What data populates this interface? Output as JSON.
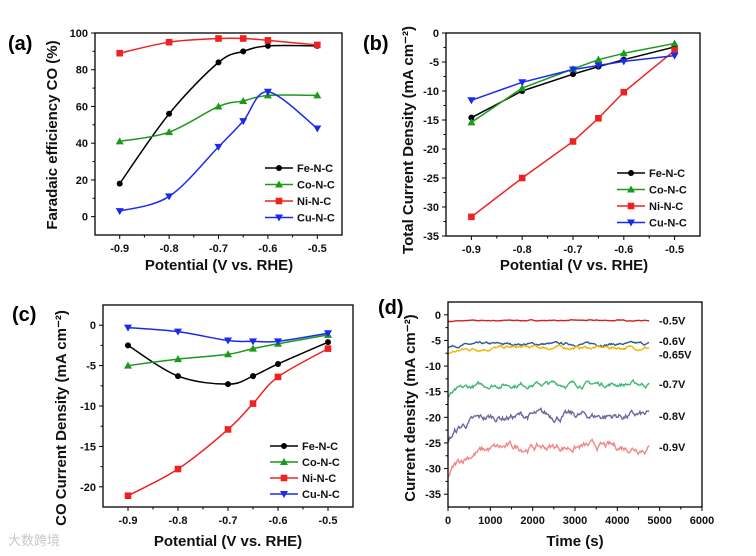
{
  "watermark": "大数跨境",
  "chart_data": [
    {
      "panel": "(a)",
      "type": "line",
      "smooth": true,
      "xlabel": "Potential (V vs. RHE)",
      "ylabel": "Faradaic efficiency CO (%)",
      "xlim": [
        -0.95,
        -0.45
      ],
      "ylim": [
        -10,
        100
      ],
      "xticks": [
        -0.9,
        -0.8,
        -0.7,
        -0.6,
        -0.5
      ],
      "xtick_labels": [
        "-0.9",
        "-0.8",
        "-0.7",
        "-0.6",
        "-0.5"
      ],
      "yticks": [
        0,
        20,
        40,
        60,
        80,
        100
      ],
      "ytick_labels": [
        "0",
        "20",
        "40",
        "60",
        "80",
        "100"
      ],
      "x": [
        -0.9,
        -0.8,
        -0.7,
        -0.65,
        -0.6,
        -0.5
      ],
      "legend": "bottom-right",
      "series": [
        {
          "name": "Fe-N-C",
          "color": "#000000",
          "marker": "circle",
          "values": [
            18,
            56,
            84,
            90,
            93,
            93
          ]
        },
        {
          "name": "Co-N-C",
          "color": "#1a9a1a",
          "marker": "triangle-up",
          "values": [
            41,
            46,
            60,
            63,
            66,
            66
          ]
        },
        {
          "name": "Ni-N-C",
          "color": "#ee2222",
          "marker": "square",
          "values": [
            89,
            95,
            97,
            97,
            96,
            93.5
          ]
        },
        {
          "name": "Cu-N-C",
          "color": "#1a2aee",
          "marker": "triangle-down",
          "values": [
            3,
            11,
            38,
            52,
            68,
            48
          ]
        }
      ]
    },
    {
      "panel": "(b)",
      "type": "line",
      "smooth": false,
      "xlabel": "Potential (V vs. RHE)",
      "ylabel": "Total Current Density (mA cm⁻²)",
      "xlim": [
        -0.95,
        -0.45
      ],
      "ylim": [
        -35,
        0
      ],
      "xticks": [
        -0.9,
        -0.8,
        -0.7,
        -0.6,
        -0.5
      ],
      "xtick_labels": [
        "-0.9",
        "-0.8",
        "-0.7",
        "-0.6",
        "-0.5"
      ],
      "yticks": [
        0,
        -5,
        -10,
        -15,
        -20,
        -25,
        -30,
        -35
      ],
      "ytick_labels": [
        "0",
        "-5",
        "-10",
        "-15",
        "-20",
        "-25",
        "-30",
        "-35"
      ],
      "x": [
        -0.9,
        -0.8,
        -0.7,
        -0.65,
        -0.6,
        -0.5
      ],
      "legend": "bottom-right",
      "series": [
        {
          "name": "Fe-N-C",
          "color": "#000000",
          "marker": "circle",
          "values": [
            -14.6,
            -10,
            -7.1,
            -5.8,
            -4.6,
            -2.4
          ]
        },
        {
          "name": "Co-N-C",
          "color": "#1a9a1a",
          "marker": "triangle-up",
          "values": [
            -15.4,
            -9.5,
            -6.2,
            -4.6,
            -3.5,
            -1.8
          ]
        },
        {
          "name": "Ni-N-C",
          "color": "#ee2222",
          "marker": "square",
          "values": [
            -31.7,
            -25,
            -18.7,
            -14.7,
            -10.2,
            -3
          ]
        },
        {
          "name": "Cu-N-C",
          "color": "#1a2aee",
          "marker": "triangle-down",
          "values": [
            -11.6,
            -8.5,
            -6.3,
            -5.6,
            -4.9,
            -3.9
          ]
        }
      ]
    },
    {
      "panel": "(c)",
      "type": "line",
      "smooth": true,
      "xlabel": "Potential (V vs. RHE)",
      "ylabel": "CO Current Density (mA cm⁻²)",
      "xlim": [
        -0.95,
        -0.45
      ],
      "ylim": [
        -22.5,
        2.5
      ],
      "xticks": [
        -0.9,
        -0.8,
        -0.7,
        -0.6,
        -0.5
      ],
      "xtick_labels": [
        "-0.9",
        "-0.8",
        "-0.7",
        "-0.6",
        "-0.5"
      ],
      "yticks": [
        0,
        -5,
        -10,
        -15,
        -20
      ],
      "ytick_labels": [
        "0",
        "-5",
        "-10",
        "-15",
        "-20"
      ],
      "x": [
        -0.9,
        -0.8,
        -0.7,
        -0.65,
        -0.6,
        -0.5
      ],
      "legend": "bottom-right",
      "series": [
        {
          "name": "Fe-N-C",
          "color": "#000000",
          "marker": "circle",
          "values": [
            -2.5,
            -6.3,
            -7.3,
            -6.3,
            -4.8,
            -2.1
          ]
        },
        {
          "name": "Co-N-C",
          "color": "#1a9a1a",
          "marker": "triangle-up",
          "values": [
            -5,
            -4.2,
            -3.6,
            -2.9,
            -2.3,
            -1.2
          ]
        },
        {
          "name": "Ni-N-C",
          "color": "#ee2222",
          "marker": "square",
          "values": [
            -21.1,
            -17.8,
            -12.9,
            -9.7,
            -6.4,
            -2.9
          ]
        },
        {
          "name": "Cu-N-C",
          "color": "#1a2aee",
          "marker": "triangle-down",
          "values": [
            -0.3,
            -0.8,
            -1.9,
            -2,
            -2,
            -1
          ]
        }
      ]
    },
    {
      "panel": "(d)",
      "type": "line",
      "smooth": false,
      "xlabel": "Time (s)",
      "ylabel": "Current density (mA cm⁻²)",
      "xlim": [
        0,
        6000
      ],
      "ylim": [
        -37.5,
        2.5
      ],
      "xticks": [
        0,
        1000,
        2000,
        3000,
        4000,
        5000,
        6000
      ],
      "xtick_labels": [
        "0",
        "1000",
        "2000",
        "3000",
        "4000",
        "5000",
        "6000"
      ],
      "yticks": [
        0,
        -5,
        -10,
        -15,
        -20,
        -25,
        -30,
        -35
      ],
      "ytick_labels": [
        "0",
        "-5",
        "-10",
        "-15",
        "-20",
        "-25",
        "-30",
        "-35"
      ],
      "time_end": 4750,
      "series": [
        {
          "name": "-0.5V",
          "color": "#d42020",
          "start": -1.3,
          "steady": -1.1,
          "noise": 0.05
        },
        {
          "name": "-0.6V",
          "color": "#2f5a96",
          "start": -6.2,
          "steady": -5.7,
          "noise": 0.15
        },
        {
          "name": "-0.65V",
          "color": "#f0b400",
          "start": -7.5,
          "steady": -6.4,
          "noise": 0.2
        },
        {
          "name": "-0.7V",
          "color": "#3cb870",
          "start": -16,
          "steady": -13.5,
          "noise": 0.3
        },
        {
          "name": "-0.8V",
          "color": "#6a6aa0",
          "start": -24.5,
          "steady": -19.7,
          "noise": 0.45
        },
        {
          "name": "-0.9V",
          "color": "#f08888",
          "start": -31.5,
          "steady": -25.8,
          "noise": 0.45
        }
      ]
    }
  ]
}
